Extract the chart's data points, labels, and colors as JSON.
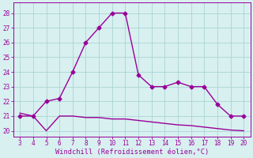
{
  "x": [
    3,
    4,
    5,
    6,
    7,
    8,
    9,
    10,
    11,
    12,
    13,
    14,
    15,
    16,
    17,
    18,
    19,
    20
  ],
  "y_main": [
    21,
    21,
    22,
    22.2,
    24,
    26,
    27,
    28,
    28,
    23.8,
    23,
    23,
    23.3,
    23,
    23,
    21.8,
    21,
    21
  ],
  "y_line2": [
    21.2,
    21.0,
    20.0,
    21.0,
    21.0,
    20.9,
    20.9,
    20.8,
    20.8,
    20.7,
    20.6,
    20.5,
    20.4,
    20.35,
    20.25,
    20.15,
    20.05,
    20.0
  ],
  "xlim": [
    2.5,
    20.5
  ],
  "ylim": [
    19.6,
    28.7
  ],
  "yticks": [
    20,
    21,
    22,
    23,
    24,
    25,
    26,
    27,
    28
  ],
  "xticks": [
    3,
    4,
    5,
    6,
    7,
    8,
    9,
    10,
    11,
    12,
    13,
    14,
    15,
    16,
    17,
    18,
    19,
    20
  ],
  "xlabel": "Windchill (Refroidissement éolien,°C)",
  "line_color": "#990099",
  "bg_color": "#d8f0f0",
  "grid_color": "#aad4d4",
  "marker": "D",
  "markersize": 2.5,
  "linewidth": 1.0,
  "tick_fontsize": 5.5,
  "xlabel_fontsize": 6.2
}
